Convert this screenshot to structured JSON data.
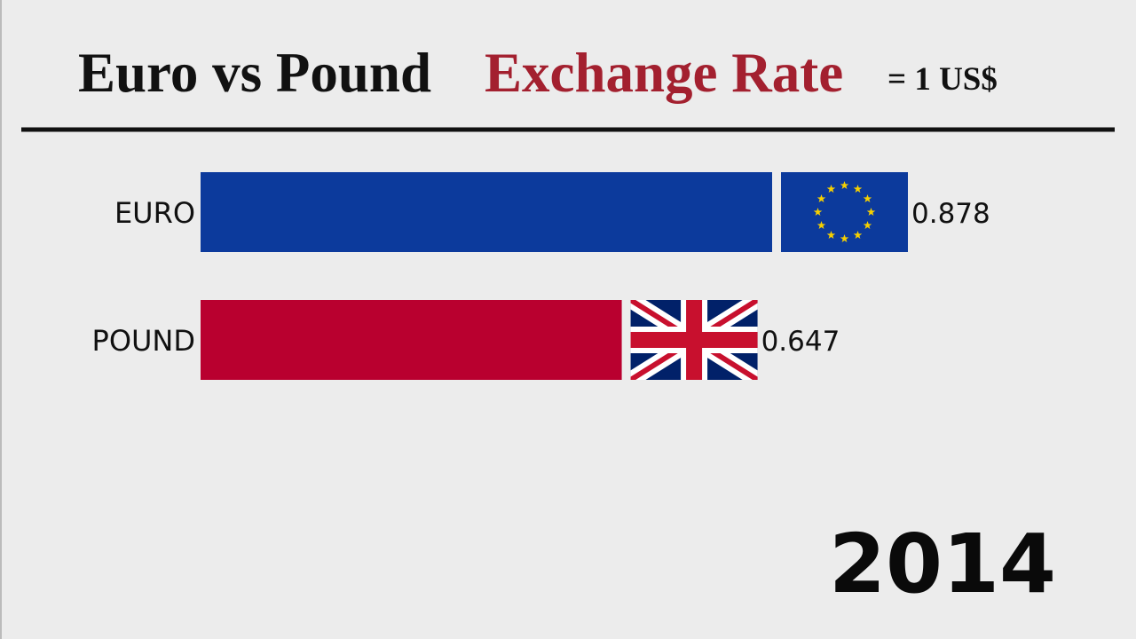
{
  "chart_data": {
    "type": "bar",
    "orientation": "horizontal",
    "title": "Euro vs Pound",
    "title_highlight": "Exchange Rate",
    "subtitle": "= 1 US$",
    "categories": [
      "EURO",
      "POUND"
    ],
    "values": [
      0.878,
      0.647
    ],
    "colors": [
      "#0c3a9c",
      "#b9002f"
    ],
    "annotation": "2014"
  }
}
